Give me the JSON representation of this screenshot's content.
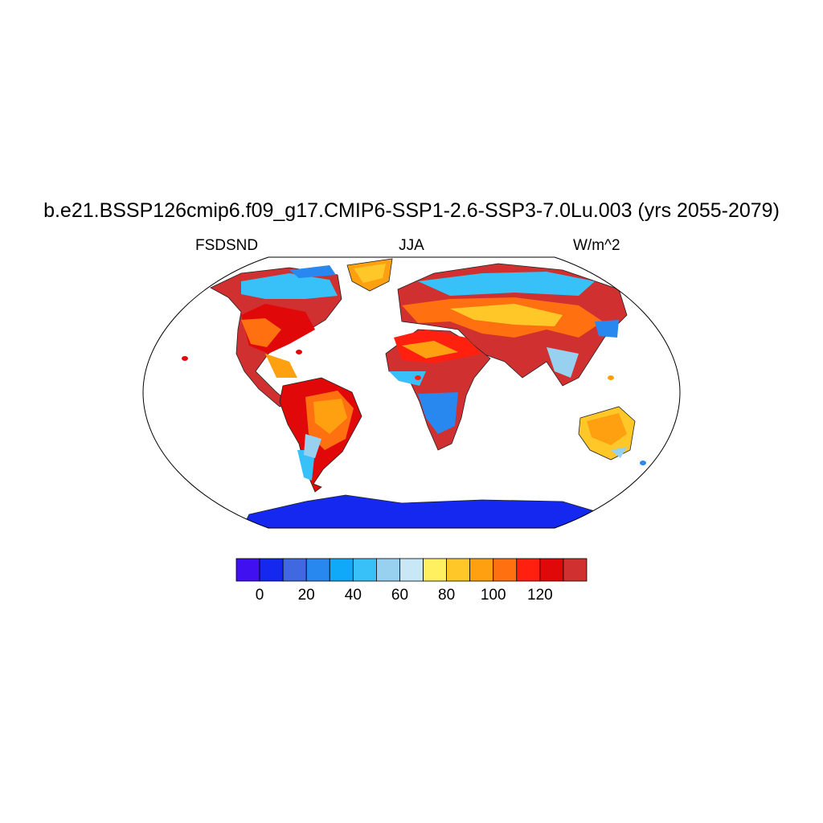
{
  "title": "b.e21.BSSP126cmip6.f09_g17.CMIP6-SSP1-2.6-SSP3-7.0Lu.003 (yrs 2055-2079)",
  "left_label": "FSDSND",
  "center_label": "JJA",
  "right_label": "W/m^2",
  "colorbar": {
    "colors": [
      "#4010f0",
      "#1428f0",
      "#4068e0",
      "#2888f0",
      "#10a8f8",
      "#38c0f8",
      "#98d0f0",
      "#c8e8f8",
      "#fff060",
      "#ffc828",
      "#ffa010",
      "#ff7010",
      "#ff2010",
      "#e00808",
      "#d03030"
    ],
    "labels": [
      "0",
      "20",
      "40",
      "60",
      "80",
      "100",
      "120"
    ]
  },
  "regions": [
    {
      "name": "north-america",
      "colors": [
        "#d03030",
        "#e00808",
        "#ff7010",
        "#ffa010",
        "#38c0f8",
        "#2888f0"
      ]
    },
    {
      "name": "south-america",
      "colors": [
        "#e00808",
        "#ff7010",
        "#ffa010",
        "#38c0f8",
        "#98d0f0"
      ]
    },
    {
      "name": "europe-asia",
      "colors": [
        "#d03030",
        "#ff7010",
        "#ffc828",
        "#38c0f8",
        "#98d0f0",
        "#2888f0"
      ]
    },
    {
      "name": "africa",
      "colors": [
        "#d03030",
        "#ff2010",
        "#ffa010",
        "#2888f0",
        "#38c0f8"
      ]
    },
    {
      "name": "australia",
      "colors": [
        "#ffc828",
        "#ffa010",
        "#98d0f0"
      ]
    },
    {
      "name": "greenland",
      "colors": [
        "#ffa010",
        "#ffc828"
      ]
    },
    {
      "name": "antarctica",
      "colors": [
        "#1428f0"
      ]
    }
  ]
}
